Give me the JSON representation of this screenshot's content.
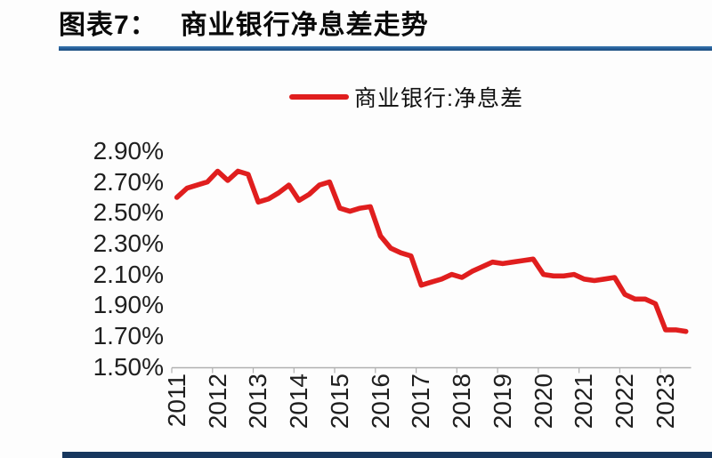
{
  "page": {
    "figure_label": "图表7：",
    "figure_title": "商业银行净息差走势",
    "accent_rule_color": "#265F9A",
    "footer_bar_color": "#17375E"
  },
  "chart_data": {
    "type": "line",
    "title": "商业银行净息差走势",
    "legend": [
      "商业银行:净息差"
    ],
    "legend_position": "top-center",
    "grid": "off",
    "axis_color": "#b0b0b0",
    "tick_label_color": "#1F1F1F",
    "x": [
      "2011Q1",
      "2011Q2",
      "2011Q3",
      "2011Q4",
      "2012Q1",
      "2012Q2",
      "2012Q3",
      "2012Q4",
      "2013Q1",
      "2013Q2",
      "2013Q3",
      "2013Q4",
      "2014Q1",
      "2014Q2",
      "2014Q3",
      "2014Q4",
      "2015Q1",
      "2015Q2",
      "2015Q3",
      "2015Q4",
      "2016Q1",
      "2016Q2",
      "2016Q3",
      "2016Q4",
      "2017Q1",
      "2017Q2",
      "2017Q3",
      "2017Q4",
      "2018Q1",
      "2018Q2",
      "2018Q3",
      "2018Q4",
      "2019Q1",
      "2019Q2",
      "2019Q3",
      "2019Q4",
      "2020Q1",
      "2020Q2",
      "2020Q3",
      "2020Q4",
      "2021Q1",
      "2021Q2",
      "2021Q3",
      "2021Q4",
      "2022Q1",
      "2022Q2",
      "2022Q3",
      "2022Q4",
      "2023Q1",
      "2023Q2",
      "2023Q3"
    ],
    "series": [
      {
        "name": "商业银行:净息差",
        "color": "#e01e1e",
        "values": [
          2.6,
          2.66,
          2.68,
          2.7,
          2.77,
          2.71,
          2.77,
          2.75,
          2.57,
          2.59,
          2.63,
          2.68,
          2.58,
          2.62,
          2.68,
          2.7,
          2.53,
          2.51,
          2.53,
          2.54,
          2.35,
          2.27,
          2.24,
          2.22,
          2.03,
          2.05,
          2.07,
          2.1,
          2.08,
          2.12,
          2.15,
          2.18,
          2.17,
          2.18,
          2.19,
          2.2,
          2.1,
          2.09,
          2.09,
          2.1,
          2.07,
          2.06,
          2.07,
          2.08,
          1.97,
          1.94,
          1.94,
          1.91,
          1.74,
          1.74,
          1.73
        ]
      }
    ],
    "x_tick_labels": [
      "2011",
      "2012",
      "2013",
      "2014",
      "2015",
      "2016",
      "2017",
      "2018",
      "2019",
      "2020",
      "2021",
      "2022",
      "2023"
    ],
    "x_label_rotation": -90,
    "yticks": [
      2.9,
      2.7,
      2.5,
      2.3,
      2.1,
      1.9,
      1.7,
      1.5
    ],
    "y_tick_labels": [
      "2.90%",
      "2.70%",
      "2.50%",
      "2.30%",
      "2.10%",
      "1.90%",
      "1.70%",
      "1.50%"
    ],
    "ylim": [
      1.5,
      2.9
    ],
    "y_unit": "%"
  }
}
